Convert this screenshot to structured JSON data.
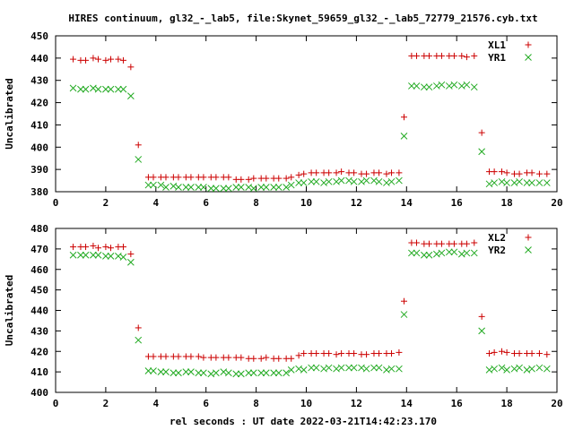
{
  "title": "HIRES continuum, gl32_-_lab5, file:Skynet_59659_gl32_-_lab5_72779_21576.cyb.txt",
  "xlabel": "rel seconds : UT date 2022-03-21T14:42:23.170",
  "colors": {
    "red": "#cc0000",
    "green": "#22aa22"
  },
  "chart_data": [
    {
      "type": "scatter",
      "ylabel": "Uncalibrated",
      "xlim": [
        0,
        20
      ],
      "ylim": [
        380,
        450
      ],
      "xticks": [
        0,
        2,
        4,
        6,
        8,
        10,
        12,
        14,
        16,
        18,
        20
      ],
      "yticks": [
        380,
        390,
        400,
        410,
        420,
        430,
        440,
        450
      ],
      "legend_position": "top-right",
      "series": [
        {
          "name": "XL1",
          "marker": "plus",
          "color": "#cc0000",
          "x": [
            0.7,
            1.0,
            1.2,
            1.5,
            1.7,
            2.0,
            2.2,
            2.5,
            2.7,
            3.0,
            3.3,
            3.7,
            3.9,
            4.2,
            4.4,
            4.7,
            4.9,
            5.2,
            5.4,
            5.7,
            5.9,
            6.2,
            6.4,
            6.7,
            6.9,
            7.2,
            7.4,
            7.7,
            7.9,
            8.2,
            8.4,
            8.7,
            8.9,
            9.2,
            9.4,
            9.7,
            9.9,
            10.2,
            10.4,
            10.7,
            10.9,
            11.2,
            11.4,
            11.7,
            11.9,
            12.2,
            12.4,
            12.7,
            12.9,
            13.2,
            13.4,
            13.7,
            13.9,
            14.2,
            14.4,
            14.7,
            14.9,
            15.2,
            15.4,
            15.7,
            15.9,
            16.2,
            16.4,
            16.7,
            17.0,
            17.3,
            17.5,
            17.8,
            18.0,
            18.3,
            18.5,
            18.8,
            19.0,
            19.3,
            19.6
          ],
          "y": [
            439.5,
            439.0,
            439.0,
            440.0,
            439.5,
            439.0,
            439.5,
            439.5,
            439.0,
            436.0,
            401.0,
            386.5,
            386.5,
            386.5,
            386.5,
            386.5,
            386.5,
            386.5,
            386.5,
            386.5,
            386.5,
            386.5,
            386.5,
            386.5,
            386.5,
            385.5,
            385.5,
            385.5,
            386.0,
            386.0,
            386.0,
            386.0,
            386.0,
            386.0,
            386.5,
            387.5,
            388.0,
            388.5,
            388.5,
            388.5,
            388.5,
            388.5,
            389.0,
            388.5,
            388.5,
            388.0,
            388.0,
            388.5,
            388.5,
            388.0,
            388.5,
            388.5,
            413.5,
            441.0,
            441.0,
            441.0,
            441.0,
            441.0,
            441.0,
            441.0,
            441.0,
            441.0,
            440.5,
            441.0,
            406.5,
            389.0,
            389.0,
            389.0,
            388.5,
            388.0,
            388.0,
            388.5,
            388.5,
            388.0,
            388.0
          ]
        },
        {
          "name": "YR1",
          "marker": "cross",
          "color": "#22aa22",
          "x": [
            0.7,
            1.0,
            1.2,
            1.5,
            1.7,
            2.0,
            2.2,
            2.5,
            2.7,
            3.0,
            3.3,
            3.7,
            3.9,
            4.2,
            4.4,
            4.7,
            4.9,
            5.2,
            5.4,
            5.7,
            5.9,
            6.2,
            6.4,
            6.7,
            6.9,
            7.2,
            7.4,
            7.7,
            7.9,
            8.2,
            8.4,
            8.7,
            8.9,
            9.2,
            9.4,
            9.7,
            9.9,
            10.2,
            10.4,
            10.7,
            10.9,
            11.2,
            11.4,
            11.7,
            11.9,
            12.2,
            12.4,
            12.7,
            12.9,
            13.2,
            13.4,
            13.7,
            13.9,
            14.2,
            14.4,
            14.7,
            14.9,
            15.2,
            15.4,
            15.7,
            15.9,
            16.2,
            16.4,
            16.7,
            17.0,
            17.3,
            17.5,
            17.8,
            18.0,
            18.3,
            18.5,
            18.8,
            19.0,
            19.3,
            19.6
          ],
          "y": [
            426.5,
            426.0,
            426.0,
            426.5,
            426.0,
            426.0,
            426.0,
            426.0,
            426.0,
            423.0,
            394.5,
            383.0,
            383.0,
            383.0,
            382.0,
            382.5,
            382.0,
            382.0,
            382.0,
            382.0,
            382.0,
            381.5,
            381.5,
            381.5,
            381.5,
            382.0,
            382.0,
            382.0,
            381.5,
            382.0,
            382.0,
            382.0,
            382.0,
            382.0,
            383.0,
            384.0,
            384.0,
            384.5,
            384.5,
            384.0,
            384.5,
            384.5,
            385.0,
            385.0,
            384.5,
            384.5,
            385.0,
            385.0,
            384.5,
            384.0,
            384.5,
            385.0,
            405.0,
            427.5,
            427.5,
            427.0,
            427.0,
            427.5,
            428.0,
            427.5,
            428.0,
            427.5,
            428.0,
            427.0,
            398.0,
            383.5,
            384.0,
            384.5,
            384.0,
            384.0,
            384.5,
            384.0,
            384.0,
            384.0,
            384.0
          ]
        }
      ]
    },
    {
      "type": "scatter",
      "ylabel": "Uncalibrated",
      "xlim": [
        0,
        20
      ],
      "ylim": [
        400,
        480
      ],
      "xticks": [
        0,
        2,
        4,
        6,
        8,
        10,
        12,
        14,
        16,
        18,
        20
      ],
      "yticks": [
        400,
        410,
        420,
        430,
        440,
        450,
        460,
        470,
        480
      ],
      "legend_position": "top-right",
      "series": [
        {
          "name": "XL2",
          "marker": "plus",
          "color": "#cc0000",
          "x": [
            0.7,
            1.0,
            1.2,
            1.5,
            1.7,
            2.0,
            2.2,
            2.5,
            2.7,
            3.0,
            3.3,
            3.7,
            3.9,
            4.2,
            4.4,
            4.7,
            4.9,
            5.2,
            5.4,
            5.7,
            5.9,
            6.2,
            6.4,
            6.7,
            6.9,
            7.2,
            7.4,
            7.7,
            7.9,
            8.2,
            8.4,
            8.7,
            8.9,
            9.2,
            9.4,
            9.7,
            9.9,
            10.2,
            10.4,
            10.7,
            10.9,
            11.2,
            11.4,
            11.7,
            11.9,
            12.2,
            12.4,
            12.7,
            12.9,
            13.2,
            13.4,
            13.7,
            13.9,
            14.2,
            14.4,
            14.7,
            14.9,
            15.2,
            15.4,
            15.7,
            15.9,
            16.2,
            16.4,
            16.7,
            17.0,
            17.3,
            17.5,
            17.8,
            18.0,
            18.3,
            18.5,
            18.8,
            19.0,
            19.3,
            19.6
          ],
          "y": [
            471.0,
            471.0,
            471.0,
            471.5,
            470.5,
            471.0,
            470.5,
            471.0,
            471.0,
            467.5,
            431.5,
            417.5,
            417.5,
            417.5,
            417.5,
            417.5,
            417.5,
            417.5,
            417.5,
            417.5,
            417.0,
            417.0,
            417.0,
            417.0,
            417.0,
            417.0,
            417.0,
            416.5,
            416.5,
            416.5,
            417.0,
            416.5,
            416.5,
            416.5,
            416.5,
            418.0,
            419.0,
            419.0,
            419.0,
            419.0,
            419.0,
            418.5,
            419.0,
            419.0,
            419.0,
            418.5,
            418.5,
            419.0,
            419.0,
            419.0,
            419.0,
            419.5,
            444.5,
            473.0,
            473.0,
            472.5,
            472.5,
            472.5,
            472.5,
            472.5,
            472.5,
            472.5,
            472.5,
            473.0,
            437.0,
            419.0,
            419.5,
            420.0,
            419.5,
            419.0,
            419.0,
            419.0,
            419.0,
            419.0,
            418.5
          ]
        },
        {
          "name": "YR2",
          "marker": "cross",
          "color": "#22aa22",
          "x": [
            0.7,
            1.0,
            1.2,
            1.5,
            1.7,
            2.0,
            2.2,
            2.5,
            2.7,
            3.0,
            3.3,
            3.7,
            3.9,
            4.2,
            4.4,
            4.7,
            4.9,
            5.2,
            5.4,
            5.7,
            5.9,
            6.2,
            6.4,
            6.7,
            6.9,
            7.2,
            7.4,
            7.7,
            7.9,
            8.2,
            8.4,
            8.7,
            8.9,
            9.2,
            9.4,
            9.7,
            9.9,
            10.2,
            10.4,
            10.7,
            10.9,
            11.2,
            11.4,
            11.7,
            11.9,
            12.2,
            12.4,
            12.7,
            12.9,
            13.2,
            13.4,
            13.7,
            13.9,
            14.2,
            14.4,
            14.7,
            14.9,
            15.2,
            15.4,
            15.7,
            15.9,
            16.2,
            16.4,
            16.7,
            17.0,
            17.3,
            17.5,
            17.8,
            18.0,
            18.3,
            18.5,
            18.8,
            19.0,
            19.3,
            19.6
          ],
          "y": [
            467.0,
            467.0,
            467.0,
            467.0,
            467.0,
            466.5,
            466.5,
            466.5,
            466.0,
            463.5,
            425.5,
            410.5,
            410.5,
            410.0,
            410.0,
            409.5,
            409.5,
            410.0,
            410.0,
            409.5,
            409.5,
            409.0,
            409.5,
            410.0,
            409.5,
            409.0,
            409.0,
            409.5,
            409.5,
            409.5,
            409.5,
            409.5,
            409.5,
            409.5,
            411.0,
            411.5,
            411.0,
            412.0,
            412.0,
            411.5,
            412.0,
            411.5,
            412.0,
            412.0,
            412.0,
            412.0,
            411.5,
            412.0,
            412.0,
            411.0,
            411.5,
            411.5,
            438.0,
            468.0,
            468.0,
            467.0,
            467.0,
            467.5,
            468.0,
            468.5,
            468.5,
            467.5,
            468.0,
            468.0,
            430.0,
            411.0,
            411.5,
            412.0,
            411.0,
            411.5,
            412.0,
            411.0,
            411.5,
            412.0,
            411.5
          ]
        }
      ]
    }
  ]
}
